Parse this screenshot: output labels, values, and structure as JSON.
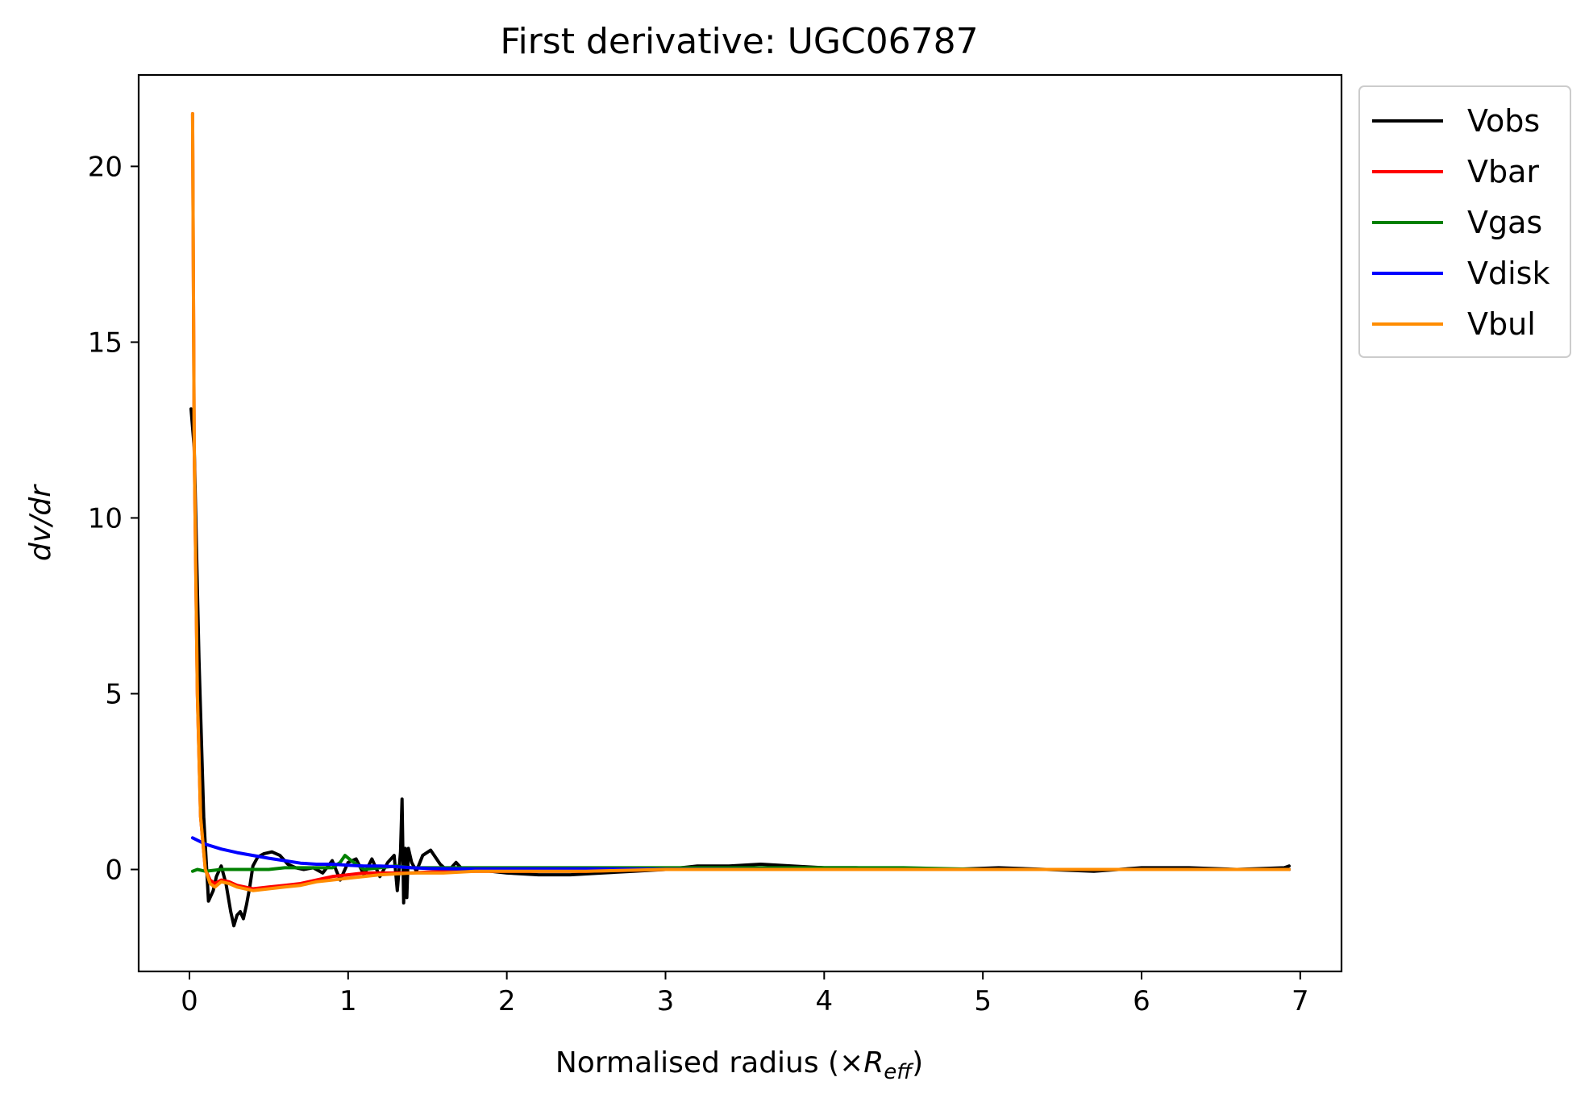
{
  "chart_data": {
    "type": "line",
    "title": "First derivative: UGC06787",
    "xlabel_prefix": "Normalised radius (×",
    "xlabel_var": "R",
    "xlabel_sub": "eff",
    "xlabel_suffix": ")",
    "ylabel": "dv/dr",
    "xlim": [
      -0.32,
      7.26
    ],
    "ylim": [
      -2.9,
      22.6
    ],
    "xticks": [
      0,
      1,
      2,
      3,
      4,
      5,
      6,
      7
    ],
    "yticks": [
      0,
      5,
      10,
      15,
      20
    ],
    "legend_position": "outside-upper-right",
    "series": [
      {
        "name": "Vobs",
        "color": "#000000",
        "x": [
          0.01,
          0.03,
          0.06,
          0.09,
          0.12,
          0.15,
          0.17,
          0.2,
          0.23,
          0.26,
          0.28,
          0.3,
          0.32,
          0.34,
          0.36,
          0.38,
          0.4,
          0.43,
          0.47,
          0.52,
          0.57,
          0.62,
          0.67,
          0.72,
          0.78,
          0.84,
          0.9,
          0.95,
          1.0,
          1.05,
          1.1,
          1.15,
          1.2,
          1.25,
          1.29,
          1.31,
          1.33,
          1.34,
          1.35,
          1.36,
          1.37,
          1.38,
          1.4,
          1.43,
          1.47,
          1.52,
          1.58,
          1.63,
          1.68,
          1.72,
          1.8,
          1.9,
          2.0,
          2.2,
          2.4,
          2.6,
          2.8,
          3.0,
          3.2,
          3.4,
          3.6,
          3.8,
          4.0,
          4.2,
          4.5,
          4.8,
          5.1,
          5.4,
          5.7,
          6.0,
          6.3,
          6.6,
          6.9,
          6.93
        ],
        "y": [
          13.1,
          12.0,
          6.0,
          1.5,
          -0.9,
          -0.6,
          -0.2,
          0.1,
          -0.4,
          -1.2,
          -1.6,
          -1.3,
          -1.2,
          -1.4,
          -1.0,
          -0.5,
          0.1,
          0.35,
          0.45,
          0.5,
          0.4,
          0.15,
          0.05,
          0.0,
          0.05,
          -0.1,
          0.25,
          -0.3,
          0.2,
          0.3,
          -0.15,
          0.3,
          -0.2,
          0.2,
          0.4,
          -0.6,
          0.5,
          2.0,
          -0.95,
          0.6,
          -0.8,
          0.6,
          0.2,
          -0.05,
          0.4,
          0.55,
          0.15,
          -0.05,
          0.2,
          0.0,
          0.0,
          -0.05,
          -0.1,
          -0.15,
          -0.15,
          -0.1,
          -0.05,
          0.0,
          0.1,
          0.1,
          0.15,
          0.1,
          0.05,
          0.05,
          0.0,
          0.0,
          0.05,
          0.0,
          -0.05,
          0.05,
          0.05,
          0.0,
          0.05,
          0.1
        ]
      },
      {
        "name": "Vbar",
        "color": "#ff0000",
        "x": [
          0.02,
          0.03,
          0.05,
          0.07,
          0.1,
          0.13,
          0.16,
          0.2,
          0.25,
          0.3,
          0.35,
          0.4,
          0.5,
          0.6,
          0.7,
          0.8,
          0.9,
          1.0,
          1.1,
          1.2,
          1.4,
          1.6,
          1.8,
          2.0,
          2.5,
          3.0,
          4.0,
          5.0,
          6.0,
          6.93
        ],
        "y": [
          21.5,
          12.0,
          5.0,
          1.5,
          0.0,
          -0.3,
          -0.4,
          -0.3,
          -0.35,
          -0.45,
          -0.5,
          -0.55,
          -0.5,
          -0.45,
          -0.4,
          -0.3,
          -0.2,
          -0.15,
          -0.1,
          -0.1,
          -0.1,
          -0.05,
          -0.05,
          -0.05,
          -0.05,
          0.0,
          0.0,
          0.0,
          0.0,
          0.0
        ]
      },
      {
        "name": "Vgas",
        "color": "#008000",
        "x": [
          0.02,
          0.05,
          0.1,
          0.2,
          0.3,
          0.4,
          0.5,
          0.6,
          0.7,
          0.8,
          0.9,
          0.95,
          0.98,
          1.02,
          1.1,
          1.2,
          1.3,
          1.4,
          1.5,
          1.7,
          2.0,
          2.5,
          3.0,
          3.5,
          4.0,
          4.5,
          5.0,
          5.5,
          6.0,
          6.5,
          6.93
        ],
        "y": [
          -0.05,
          0.0,
          -0.05,
          0.0,
          0.0,
          0.0,
          0.0,
          0.05,
          0.05,
          0.05,
          0.05,
          0.2,
          0.4,
          0.25,
          0.0,
          0.05,
          0.1,
          0.05,
          0.05,
          0.05,
          0.05,
          0.05,
          0.05,
          0.05,
          0.05,
          0.05,
          0.0,
          0.0,
          0.0,
          0.0,
          0.0
        ]
      },
      {
        "name": "Vdisk",
        "color": "#0000ff",
        "x": [
          0.02,
          0.1,
          0.2,
          0.3,
          0.4,
          0.5,
          0.6,
          0.7,
          0.8,
          0.9,
          1.0,
          1.1,
          1.2,
          1.3,
          1.4,
          1.5,
          1.7,
          2.0,
          2.5,
          3.0,
          4.0,
          5.0,
          6.0,
          6.93
        ],
        "y": [
          0.9,
          0.72,
          0.58,
          0.48,
          0.4,
          0.32,
          0.25,
          0.18,
          0.15,
          0.15,
          0.12,
          0.1,
          0.1,
          0.08,
          0.05,
          0.03,
          0.02,
          0.02,
          0.02,
          0.01,
          0.0,
          0.0,
          0.0,
          0.0
        ]
      },
      {
        "name": "Vbul",
        "color": "#ff8c00",
        "x": [
          0.02,
          0.03,
          0.05,
          0.07,
          0.1,
          0.13,
          0.16,
          0.2,
          0.25,
          0.3,
          0.35,
          0.4,
          0.5,
          0.6,
          0.7,
          0.8,
          0.9,
          1.0,
          1.1,
          1.2,
          1.4,
          1.6,
          1.8,
          2.0,
          2.5,
          3.0,
          4.0,
          5.0,
          6.0,
          6.93
        ],
        "y": [
          21.5,
          12.0,
          5.0,
          1.5,
          0.0,
          -0.4,
          -0.5,
          -0.35,
          -0.4,
          -0.5,
          -0.55,
          -0.6,
          -0.55,
          -0.5,
          -0.45,
          -0.35,
          -0.3,
          -0.25,
          -0.2,
          -0.15,
          -0.1,
          -0.1,
          -0.05,
          -0.05,
          -0.05,
          0.0,
          0.0,
          0.0,
          0.0,
          0.0
        ]
      }
    ]
  }
}
